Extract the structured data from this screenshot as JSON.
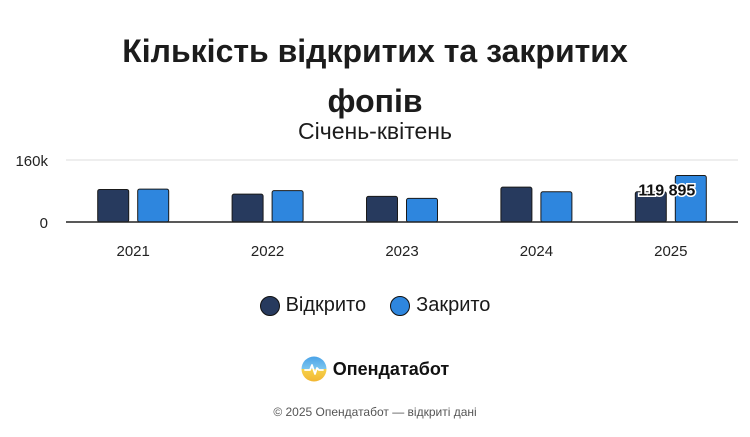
{
  "title_line1": "Кількість відкритих та закритих",
  "title_line2": "фопів",
  "subtitle": "Січень-квітень",
  "brand": {
    "name": "Опендатабот",
    "logo_icon": "opendatabot-logo-icon"
  },
  "footer": "© 2025 Опендатабот — відкриті дані",
  "colors": {
    "opened": "#273a5e",
    "closed": "#2e86de",
    "axis": "#222222",
    "grid": "#dddddd"
  },
  "chart_data": {
    "type": "bar",
    "categories": [
      "2021",
      "2022",
      "2023",
      "2024",
      "2025"
    ],
    "series": [
      {
        "name": "Відкрито",
        "values": [
          84000,
          72000,
          66000,
          90000,
          78000
        ]
      },
      {
        "name": "Закрито",
        "values": [
          85000,
          81000,
          61000,
          78000,
          119895
        ]
      }
    ],
    "ylim": [
      0,
      160000
    ],
    "yticks": [
      "0",
      "160k"
    ],
    "data_labels": [
      {
        "series": 1,
        "index": 4,
        "text": "119 895"
      }
    ],
    "grid": true,
    "legend": "bottom"
  }
}
